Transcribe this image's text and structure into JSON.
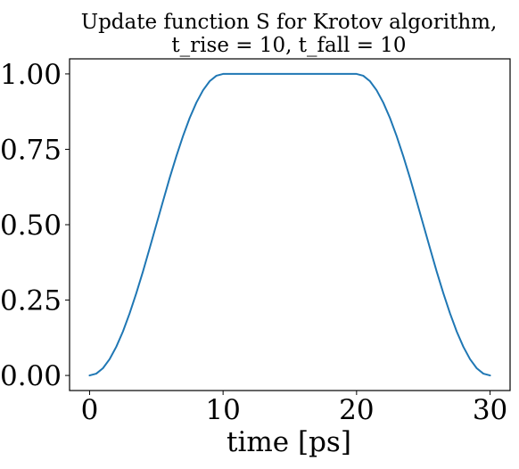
{
  "chart_data": {
    "type": "line",
    "title_lines": [
      "Update function S for Krotov algorithm,",
      "t_rise = 10, t_fall = 10"
    ],
    "xlabel": "time [ps]",
    "ylabel": "",
    "xlim": [
      -1.5,
      31.5
    ],
    "ylim": [
      -0.05,
      1.05
    ],
    "xticks": [
      0,
      10,
      20,
      30
    ],
    "xtick_labels": [
      "0",
      "10",
      "20",
      "30"
    ],
    "yticks": [
      0.0,
      0.25,
      0.5,
      0.75,
      1.0
    ],
    "ytick_labels": [
      "0.00",
      "0.25",
      "0.50",
      "0.75",
      "1.00"
    ],
    "grid": false,
    "series": [
      {
        "color": "#1f77b4",
        "x": [
          0,
          0.5,
          1,
          1.5,
          2,
          2.5,
          3,
          3.5,
          4,
          4.5,
          5,
          5.5,
          6,
          6.5,
          7,
          7.5,
          8,
          8.5,
          9,
          9.5,
          10,
          11,
          12,
          13,
          14,
          15,
          16,
          17,
          18,
          19,
          20,
          20.5,
          21,
          21.5,
          22,
          22.5,
          23,
          23.5,
          24,
          24.5,
          25,
          25.5,
          26,
          26.5,
          27,
          27.5,
          28,
          28.5,
          29,
          29.5,
          30
        ],
        "y": [
          0.0,
          0.006,
          0.024,
          0.054,
          0.095,
          0.146,
          0.206,
          0.273,
          0.345,
          0.422,
          0.5,
          0.578,
          0.655,
          0.727,
          0.794,
          0.854,
          0.905,
          0.946,
          0.976,
          0.994,
          1.0,
          1.0,
          1.0,
          1.0,
          1.0,
          1.0,
          1.0,
          1.0,
          1.0,
          1.0,
          1.0,
          0.994,
          0.976,
          0.946,
          0.905,
          0.854,
          0.794,
          0.727,
          0.655,
          0.578,
          0.5,
          0.422,
          0.345,
          0.273,
          0.206,
          0.146,
          0.095,
          0.054,
          0.024,
          0.006,
          0.0
        ]
      }
    ]
  }
}
